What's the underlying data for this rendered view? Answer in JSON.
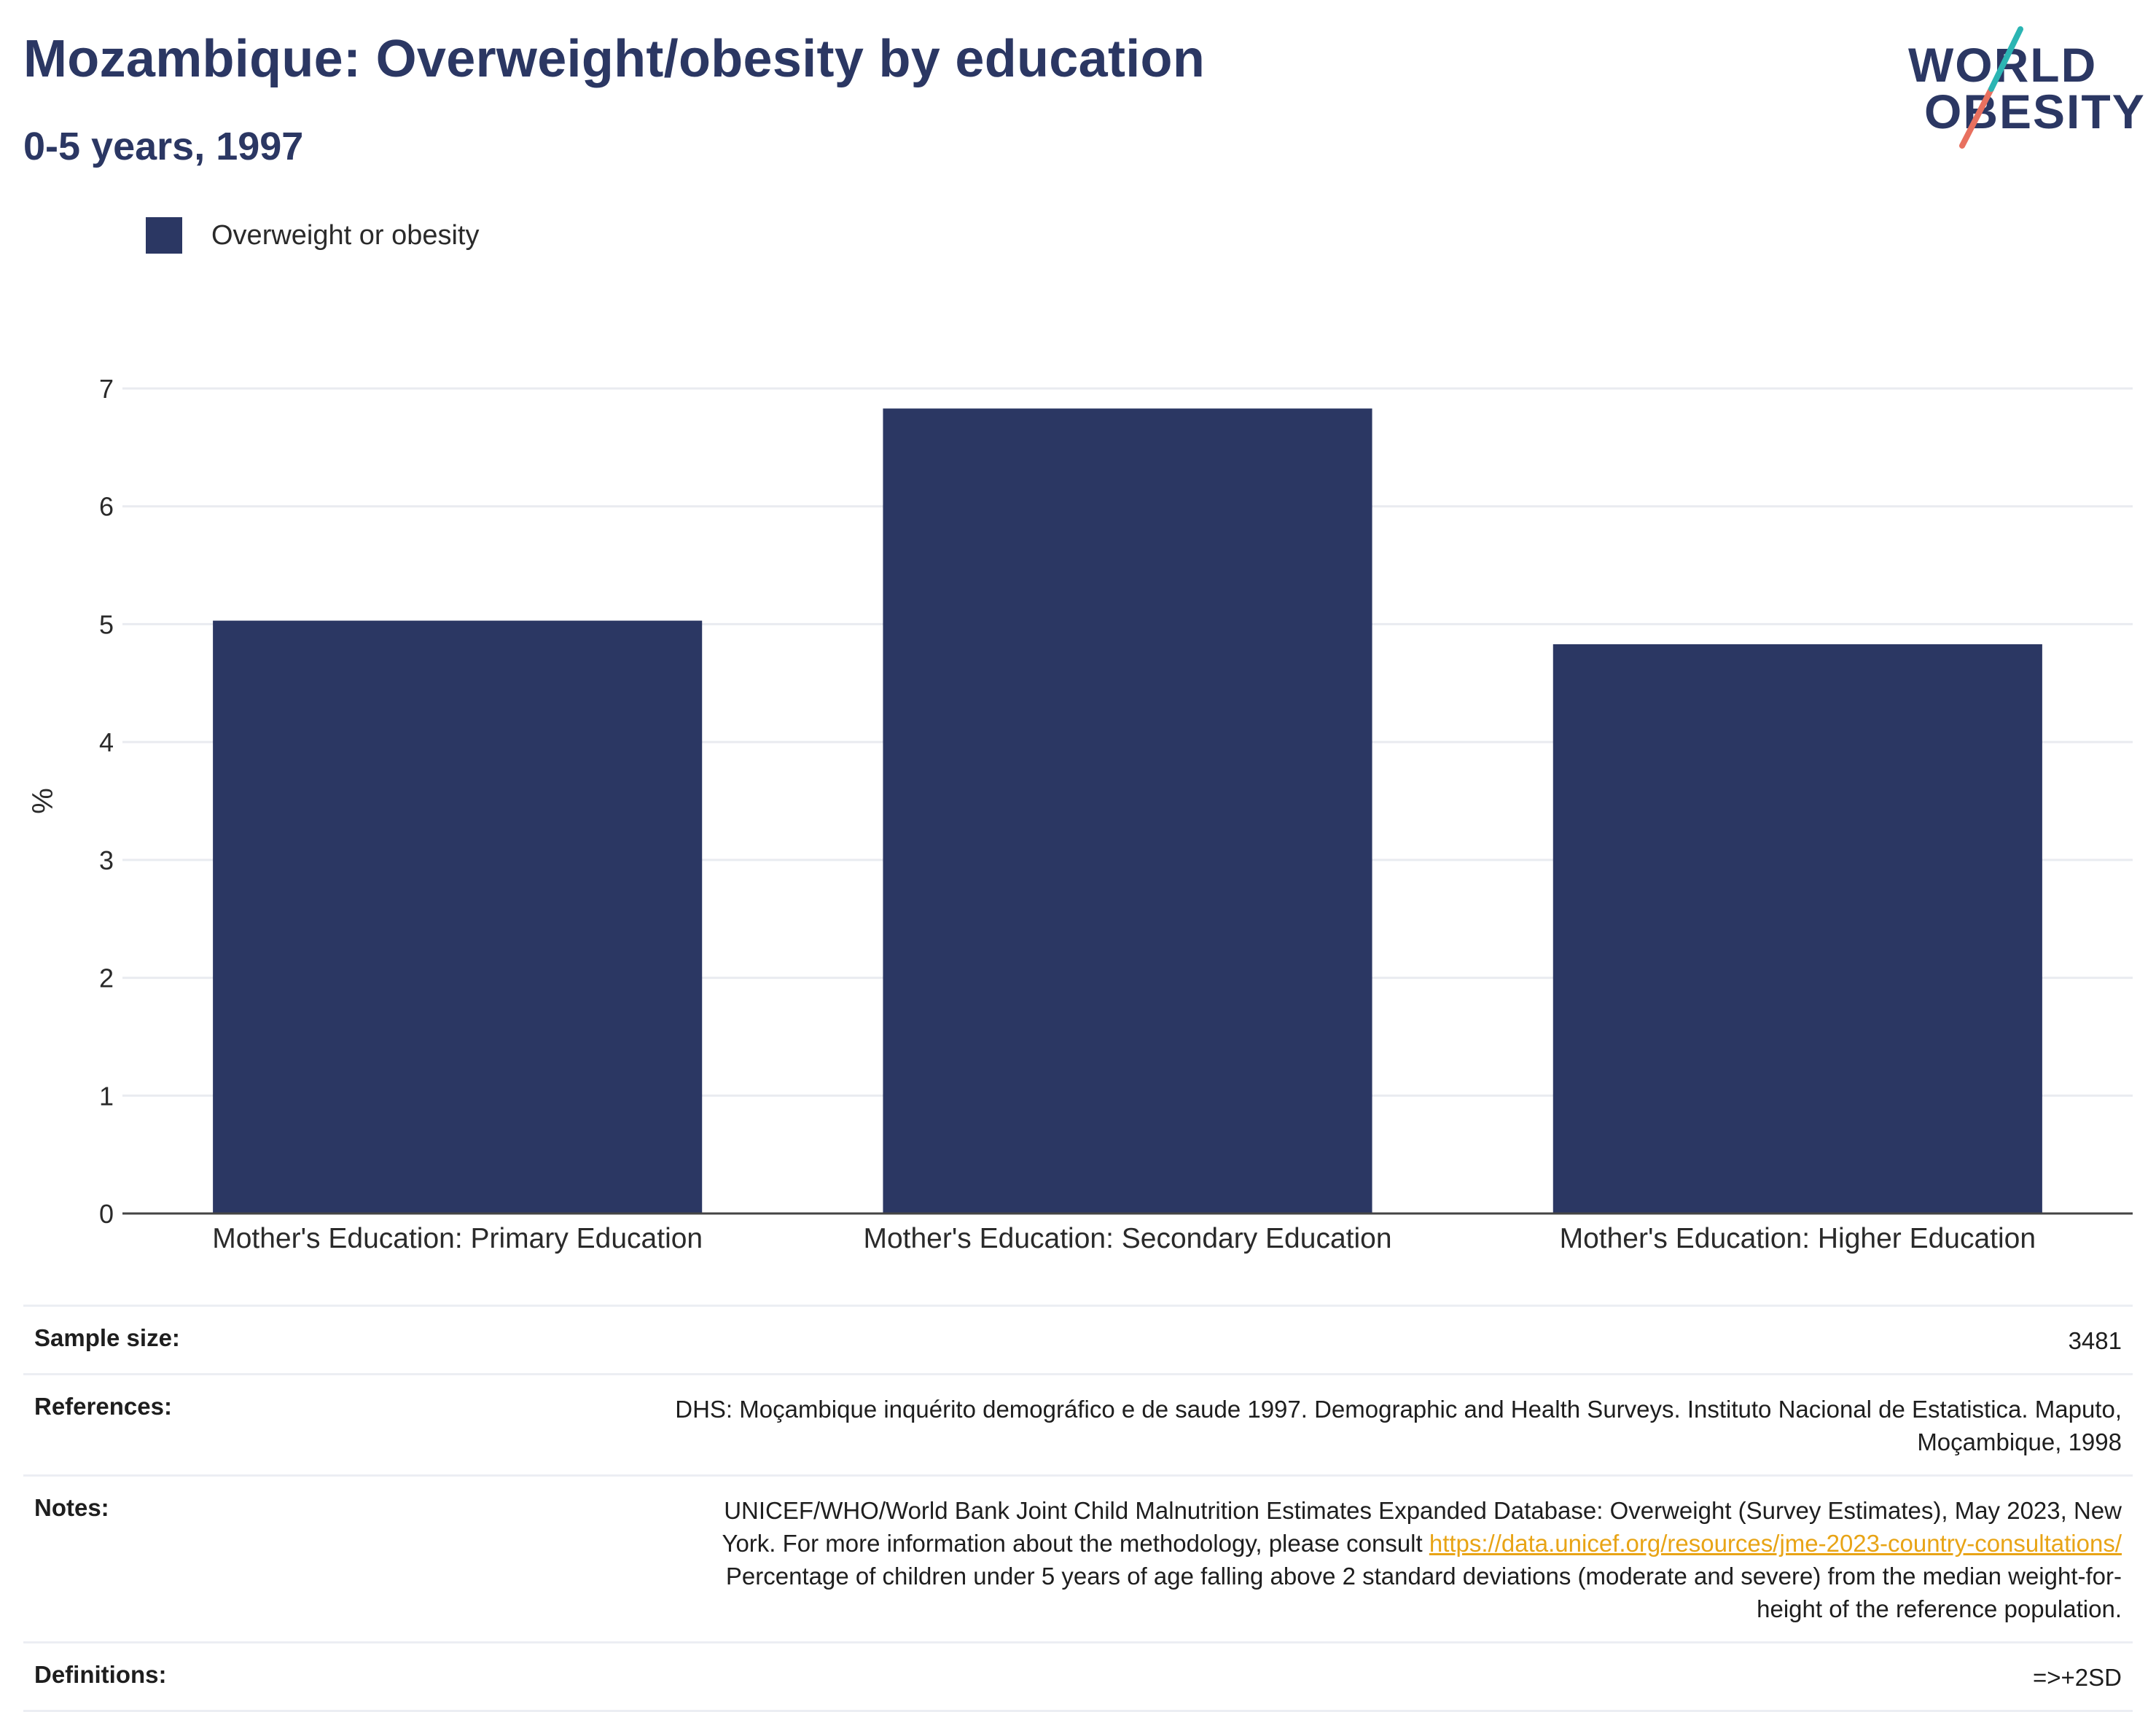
{
  "header": {
    "title": "Mozambique: Overweight/obesity by education",
    "subtitle": "0-5 years, 1997"
  },
  "logo": {
    "line1": "WORLD",
    "line2": "OBESITY",
    "colors": {
      "text": "#2b3763",
      "slash_top": "#2bb5b3",
      "slash_bottom": "#e8705f"
    }
  },
  "legend": {
    "label": "Overweight or obesity",
    "color": "#2b3763"
  },
  "chart_data": {
    "type": "bar",
    "categories": [
      "Mother's Education: Primary Education",
      "Mother's Education: Secondary Education",
      "Mother's Education: Higher Education"
    ],
    "series": [
      {
        "name": "Overweight or obesity",
        "values": [
          5.03,
          6.83,
          4.83
        ],
        "color": "#2b3763"
      }
    ],
    "ylabel": "%",
    "xlabel": "",
    "ylim": [
      0,
      7
    ],
    "yticks": [
      0,
      1,
      2,
      3,
      4,
      5,
      6,
      7
    ],
    "grid": true,
    "legend_position": "top-left"
  },
  "info": {
    "sample_size": {
      "label": "Sample size:",
      "value": "3481"
    },
    "references": {
      "label": "References:",
      "line1": "DHS: Moçambique inquérito demográfico e de saude 1997. Demographic and Health Surveys. Instituto Nacional de Estatistica. Maputo,",
      "line2": "Moçambique, 1998"
    },
    "notes": {
      "label": "Notes:",
      "line1": "UNICEF/WHO/World Bank Joint Child Malnutrition Estimates Expanded Database: Overweight (Survey Estimates), May 2023, New",
      "line2_prefix": "York. For more information about the methodology, please consult ",
      "link": "https://data.unicef.org/resources/jme-2023-country-consultations/",
      "line3": "Percentage of children under 5 years of age falling above 2 standard deviations (moderate and severe) from the median weight-for-",
      "line4": "height of the reference population."
    },
    "definitions": {
      "label": "Definitions:",
      "value": "=>+2SD"
    }
  }
}
